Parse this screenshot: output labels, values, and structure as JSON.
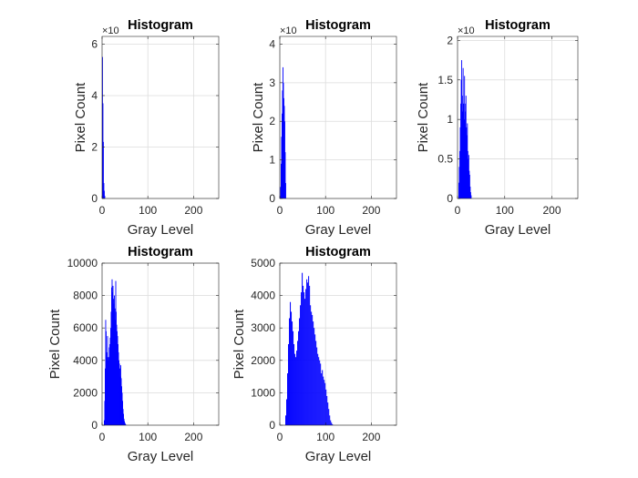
{
  "chart_data": [
    {
      "type": "bar",
      "title": "Histogram",
      "xlabel": "Gray Level",
      "ylabel": "Pixel Count",
      "xlim": [
        0,
        255
      ],
      "ylim": [
        0,
        6.3
      ],
      "xticks": [
        "0",
        "100",
        "200"
      ],
      "yticks": [
        "0",
        "2",
        "4",
        "6"
      ],
      "ytick_values": [
        0,
        2,
        4,
        6
      ],
      "exponent_label": "×10",
      "grid": true,
      "color": "#0000ff",
      "x": [
        0,
        1,
        2,
        3,
        4,
        5
      ],
      "values": [
        5.5,
        3.7,
        2.2,
        0.6,
        0.3,
        0.1
      ]
    },
    {
      "type": "bar",
      "title": "Histogram",
      "xlabel": "Gray Level",
      "ylabel": "Pixel Count",
      "xlim": [
        0,
        255
      ],
      "ylim": [
        0,
        4.2
      ],
      "xticks": [
        "0",
        "100",
        "200"
      ],
      "yticks": [
        "0",
        "1",
        "2",
        "3",
        "4"
      ],
      "ytick_values": [
        0,
        1,
        2,
        3,
        4
      ],
      "exponent_label": "×10",
      "grid": true,
      "color": "#0000ff",
      "x": [
        1,
        2,
        3,
        4,
        5,
        6,
        7,
        8,
        9,
        10,
        11,
        12
      ],
      "values": [
        0.3,
        0.9,
        1.6,
        2.2,
        2.8,
        3.4,
        3.0,
        2.6,
        2.4,
        2.0,
        1.2,
        0.4
      ]
    },
    {
      "type": "bar",
      "title": "Histogram",
      "xlabel": "Gray Level",
      "ylabel": "Pixel Count",
      "xlim": [
        0,
        255
      ],
      "ylim": [
        0,
        2.05
      ],
      "xticks": [
        "0",
        "100",
        "200"
      ],
      "yticks": [
        "0",
        "0.5",
        "1",
        "1.5",
        "2"
      ],
      "ytick_values": [
        0,
        0.5,
        1,
        1.5,
        2
      ],
      "exponent_label": "×10",
      "grid": true,
      "color": "#0000ff",
      "x": [
        2,
        3,
        4,
        5,
        6,
        7,
        8,
        9,
        10,
        11,
        12,
        13,
        14,
        15,
        16,
        17,
        18,
        19,
        20,
        21,
        22,
        23,
        24,
        25,
        26,
        27,
        28
      ],
      "values": [
        0.2,
        0.4,
        0.6,
        0.9,
        1.2,
        1.5,
        1.75,
        1.3,
        1.1,
        1.65,
        1.2,
        1.0,
        1.55,
        1.2,
        1.1,
        1.3,
        0.9,
        0.8,
        0.95,
        0.6,
        0.5,
        0.55,
        0.35,
        0.3,
        0.15,
        0.08,
        0.04
      ]
    },
    {
      "type": "bar",
      "title": "Histogram",
      "xlabel": "Gray Level",
      "ylabel": "Pixel Count",
      "xlim": [
        0,
        255
      ],
      "ylim": [
        0,
        10000
      ],
      "xticks": [
        "0",
        "100",
        "200"
      ],
      "yticks": [
        "0",
        "2000",
        "4000",
        "6000",
        "8000",
        "10000"
      ],
      "ytick_values": [
        0,
        2000,
        4000,
        6000,
        8000,
        10000
      ],
      "grid": true,
      "color": "#0000ff",
      "x": [
        4,
        5,
        6,
        7,
        8,
        9,
        10,
        11,
        12,
        13,
        14,
        15,
        16,
        17,
        18,
        19,
        20,
        21,
        22,
        23,
        24,
        25,
        26,
        27,
        28,
        29,
        30,
        31,
        32,
        33,
        34,
        35,
        36,
        37,
        38,
        39,
        40,
        41,
        42,
        43,
        44,
        45,
        46,
        47,
        48,
        49,
        50,
        51
      ],
      "values": [
        300,
        1500,
        3500,
        6500,
        5800,
        4500,
        4200,
        5500,
        4200,
        4000,
        4200,
        4800,
        5000,
        5400,
        6000,
        7000,
        8500,
        9000,
        8200,
        8600,
        7800,
        7500,
        8000,
        7200,
        6500,
        8900,
        7000,
        6200,
        5800,
        5500,
        5000,
        4500,
        4000,
        3800,
        3500,
        3000,
        3700,
        2900,
        2400,
        2000,
        1500,
        1000,
        700,
        400,
        250,
        150,
        80,
        40
      ]
    },
    {
      "type": "bar",
      "title": "Histogram",
      "xlabel": "Gray Level",
      "ylabel": "Pixel Count",
      "xlim": [
        0,
        255
      ],
      "ylim": [
        0,
        5000
      ],
      "xticks": [
        "0",
        "100",
        "200"
      ],
      "yticks": [
        "0",
        "1000",
        "2000",
        "3000",
        "4000",
        "5000"
      ],
      "ytick_values": [
        0,
        1000,
        2000,
        3000,
        4000,
        5000
      ],
      "grid": true,
      "color": "#0000ff",
      "x": [
        12,
        14,
        16,
        18,
        20,
        22,
        24,
        26,
        28,
        30,
        32,
        34,
        36,
        38,
        40,
        42,
        44,
        46,
        48,
        50,
        52,
        54,
        56,
        58,
        60,
        62,
        64,
        66,
        68,
        70,
        72,
        74,
        76,
        78,
        80,
        82,
        84,
        86,
        88,
        90,
        92,
        94,
        96,
        98,
        100,
        102,
        104,
        106,
        108,
        110,
        112,
        114
      ],
      "values": [
        300,
        800,
        1600,
        2500,
        3300,
        3800,
        3500,
        3200,
        2900,
        2500,
        2200,
        2100,
        2300,
        2600,
        2900,
        3300,
        3700,
        4100,
        4700,
        4300,
        4100,
        3900,
        4200,
        4500,
        4400,
        4600,
        4300,
        3700,
        3500,
        3400,
        3200,
        3000,
        2800,
        2600,
        2400,
        2200,
        2100,
        2000,
        1900,
        1600,
        1700,
        1500,
        1400,
        1300,
        1100,
        900,
        700,
        500,
        300,
        150,
        80,
        30
      ]
    }
  ]
}
